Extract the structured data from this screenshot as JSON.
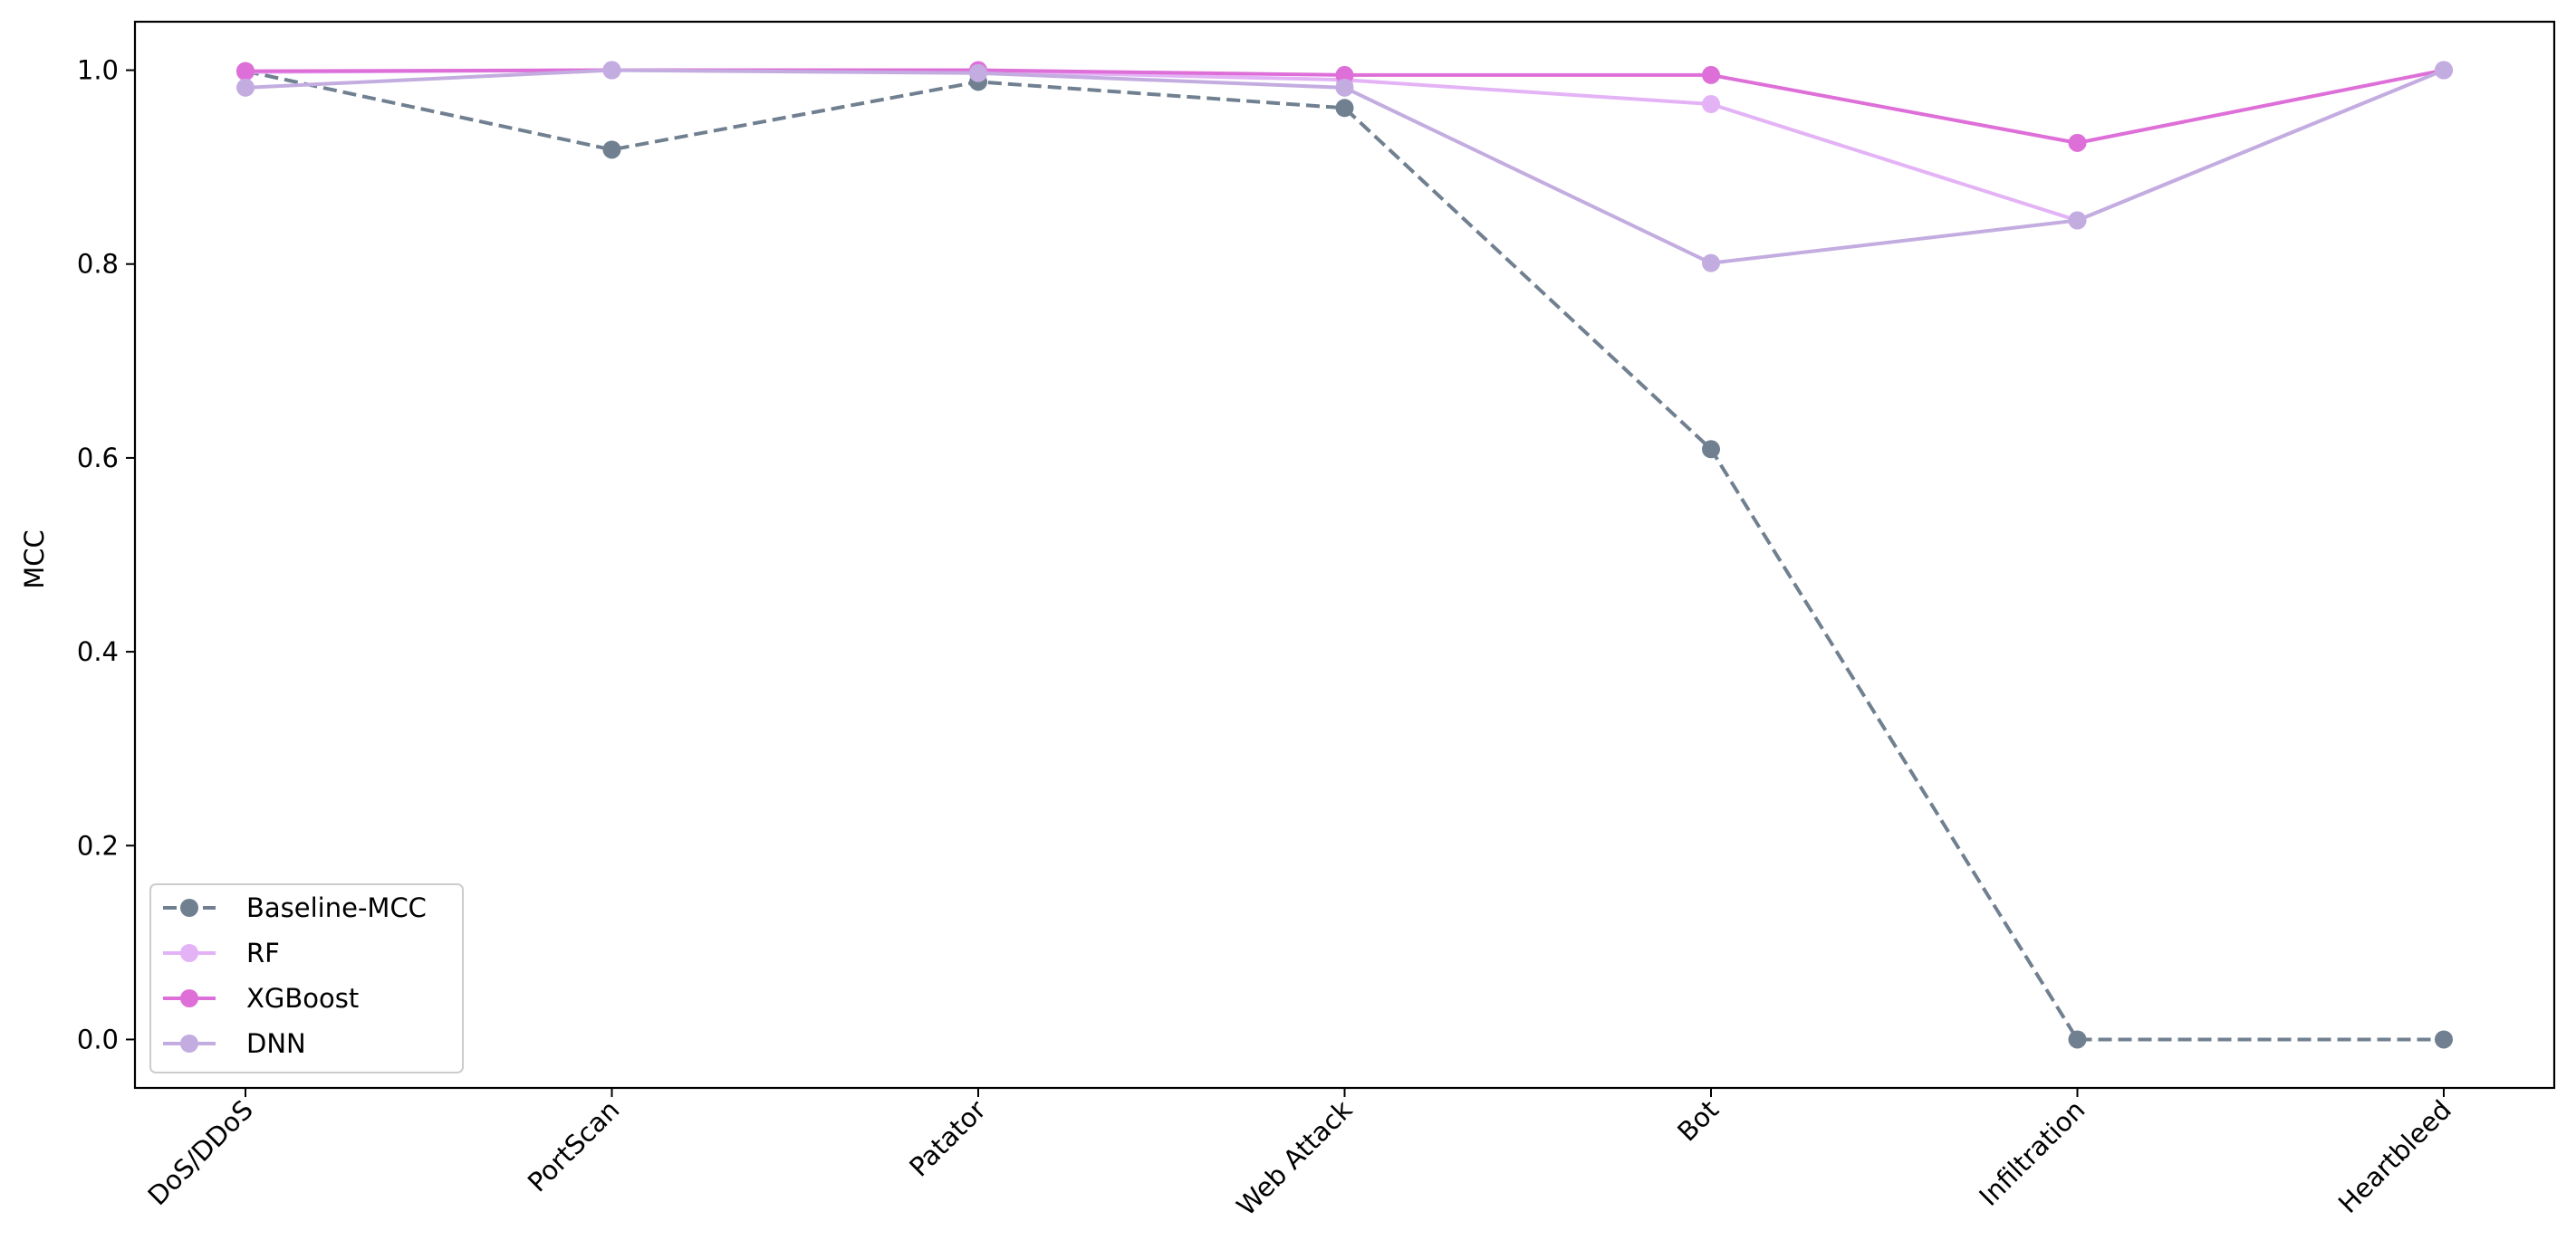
{
  "chart_data": {
    "type": "line",
    "title": "",
    "xlabel": "",
    "ylabel": "MCC",
    "categories": [
      "DoS/DDoS",
      "PortScan",
      "Patator",
      "Web Attack",
      "Bot",
      "Infiltration",
      "Heartbleed"
    ],
    "ylim": [
      -0.05,
      1.05
    ],
    "yticks": [
      "0.0",
      "0.2",
      "0.4",
      "0.6",
      "0.8",
      "1.0"
    ],
    "grid": false,
    "legend_position": "lower-left",
    "series": [
      {
        "name": "Baseline-MCC",
        "color": "#708090",
        "dashed": true,
        "values": [
          0.999,
          0.918,
          0.988,
          0.961,
          0.609,
          0.0,
          0.0
        ]
      },
      {
        "name": "RF",
        "color": "#e3b3f6",
        "dashed": false,
        "values": [
          0.998,
          1.0,
          0.999,
          0.99,
          0.965,
          0.845,
          1.0
        ]
      },
      {
        "name": "XGBoost",
        "color": "#de6fd8",
        "dashed": false,
        "values": [
          0.999,
          1.0,
          1.0,
          0.995,
          0.995,
          0.925,
          1.0
        ]
      },
      {
        "name": "DNN",
        "color": "#c3ace0",
        "dashed": false,
        "values": [
          0.982,
          1.0,
          0.997,
          0.982,
          0.801,
          0.845,
          1.0
        ]
      }
    ]
  }
}
